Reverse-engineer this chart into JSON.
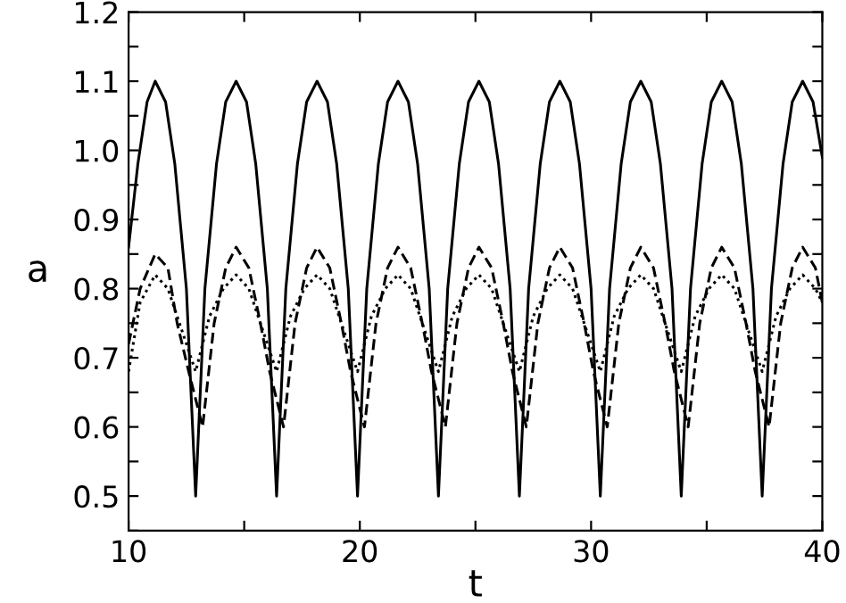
{
  "chart_data": {
    "type": "line",
    "xlabel": "t",
    "ylabel": "a",
    "xlim": [
      10,
      40
    ],
    "ylim": [
      0.45,
      1.2
    ],
    "xticks": [
      10,
      {
        "value": 15,
        "label": null
      },
      20,
      {
        "value": 25,
        "label": null
      },
      30,
      {
        "value": 35,
        "label": null
      },
      40
    ],
    "yticks": [
      {
        "value": 0.45,
        "label": null
      },
      0.5,
      {
        "value": 0.55,
        "label": null
      },
      0.6,
      {
        "value": 0.65,
        "label": null
      },
      0.7,
      {
        "value": 0.75,
        "label": null
      },
      0.8,
      {
        "value": 0.85,
        "label": null
      },
      0.9,
      {
        "value": 0.95,
        "label": null
      },
      {
        "value": 1,
        "label": "1.0"
      },
      {
        "value": 1.05,
        "label": null
      },
      1.1,
      {
        "value": 1.15,
        "label": null
      },
      1.2
    ],
    "grid": false,
    "legend": false,
    "marker": "none",
    "series": [
      {
        "color": "#000000",
        "line_style": "solid",
        "x": [
          10,
          10.4,
          10.8,
          11.15,
          11.6,
          12.0,
          12.5,
          12.9,
          13.3,
          13.8,
          14.2,
          14.65,
          15.1,
          15.5,
          16.0,
          16.4,
          16.8,
          17.3,
          17.7,
          18.15,
          18.6,
          19.0,
          19.5,
          19.9,
          20.3,
          20.8,
          21.2,
          21.65,
          22.1,
          22.5,
          23.0,
          23.4,
          23.8,
          24.3,
          24.7,
          25.15,
          25.6,
          26.0,
          26.5,
          26.9,
          27.3,
          27.8,
          28.2,
          28.65,
          29.1,
          29.5,
          30.0,
          30.4,
          30.8,
          31.3,
          31.7,
          32.15,
          32.6,
          33.0,
          33.5,
          33.9,
          34.3,
          34.8,
          35.2,
          35.65,
          36.1,
          36.5,
          37.0,
          37.4,
          37.8,
          38.3,
          38.7,
          39.15,
          39.6,
          40.0
        ],
        "values": [
          0.86,
          0.98,
          1.07,
          1.1,
          1.07,
          0.98,
          0.8,
          0.5,
          0.8,
          0.98,
          1.07,
          1.1,
          1.07,
          0.98,
          0.8,
          0.5,
          0.8,
          0.98,
          1.07,
          1.1,
          1.07,
          0.98,
          0.8,
          0.5,
          0.8,
          0.98,
          1.07,
          1.1,
          1.07,
          0.98,
          0.8,
          0.5,
          0.8,
          0.98,
          1.07,
          1.1,
          1.07,
          0.98,
          0.8,
          0.5,
          0.8,
          0.98,
          1.07,
          1.1,
          1.07,
          0.98,
          0.8,
          0.5,
          0.8,
          0.98,
          1.07,
          1.1,
          1.07,
          0.98,
          0.8,
          0.5,
          0.8,
          0.98,
          1.07,
          1.1,
          1.07,
          0.98,
          0.8,
          0.5,
          0.8,
          0.98,
          1.07,
          1.1,
          1.07,
          0.99
        ]
      },
      {
        "color": "#000000",
        "line_style": "dashed",
        "x": [
          10,
          10.5,
          11.15,
          11.7,
          12.1,
          12.6,
          13.2,
          13.7,
          14.2,
          14.65,
          15.2,
          15.7,
          16.1,
          16.7,
          17.2,
          17.7,
          18.15,
          18.7,
          19.2,
          19.6,
          20.2,
          20.7,
          21.2,
          21.65,
          22.2,
          22.7,
          23.1,
          23.7,
          24.2,
          24.7,
          25.15,
          25.7,
          26.2,
          26.6,
          27.2,
          27.7,
          28.2,
          28.65,
          29.2,
          29.7,
          30.1,
          30.7,
          31.2,
          31.7,
          32.15,
          32.7,
          33.2,
          33.6,
          34.2,
          34.7,
          35.2,
          35.65,
          36.2,
          36.7,
          37.1,
          37.7,
          38.2,
          38.7,
          39.15,
          39.7,
          40.0
        ],
        "values": [
          0.72,
          0.8,
          0.85,
          0.83,
          0.75,
          0.68,
          0.6,
          0.75,
          0.83,
          0.86,
          0.83,
          0.75,
          0.68,
          0.6,
          0.75,
          0.83,
          0.86,
          0.83,
          0.75,
          0.68,
          0.6,
          0.75,
          0.83,
          0.86,
          0.83,
          0.75,
          0.68,
          0.6,
          0.75,
          0.83,
          0.86,
          0.83,
          0.75,
          0.68,
          0.6,
          0.75,
          0.83,
          0.86,
          0.83,
          0.75,
          0.68,
          0.6,
          0.75,
          0.83,
          0.86,
          0.83,
          0.75,
          0.68,
          0.6,
          0.75,
          0.83,
          0.86,
          0.83,
          0.75,
          0.68,
          0.6,
          0.75,
          0.83,
          0.86,
          0.83,
          0.78
        ]
      },
      {
        "color": "#000000",
        "line_style": "dotted",
        "x": [
          10,
          10.5,
          11.15,
          11.7,
          12.3,
          12.9,
          13.5,
          14.1,
          14.65,
          15.2,
          15.8,
          16.4,
          17.0,
          17.6,
          18.15,
          18.7,
          19.3,
          19.9,
          20.5,
          21.1,
          21.65,
          22.2,
          22.8,
          23.4,
          24.0,
          24.6,
          25.15,
          25.7,
          26.3,
          26.9,
          27.5,
          28.1,
          28.65,
          29.2,
          29.8,
          30.4,
          31.0,
          31.6,
          32.15,
          32.7,
          33.3,
          33.9,
          34.5,
          35.1,
          35.65,
          36.2,
          36.8,
          37.4,
          38.0,
          38.6,
          39.15,
          39.7,
          40.0
        ],
        "values": [
          0.68,
          0.78,
          0.82,
          0.8,
          0.74,
          0.68,
          0.76,
          0.8,
          0.82,
          0.8,
          0.74,
          0.68,
          0.76,
          0.8,
          0.82,
          0.8,
          0.74,
          0.68,
          0.76,
          0.8,
          0.82,
          0.8,
          0.74,
          0.68,
          0.76,
          0.8,
          0.82,
          0.8,
          0.74,
          0.68,
          0.76,
          0.8,
          0.82,
          0.8,
          0.74,
          0.68,
          0.76,
          0.8,
          0.82,
          0.8,
          0.74,
          0.68,
          0.76,
          0.8,
          0.82,
          0.8,
          0.74,
          0.68,
          0.76,
          0.8,
          0.82,
          0.8,
          0.78
        ]
      }
    ]
  }
}
